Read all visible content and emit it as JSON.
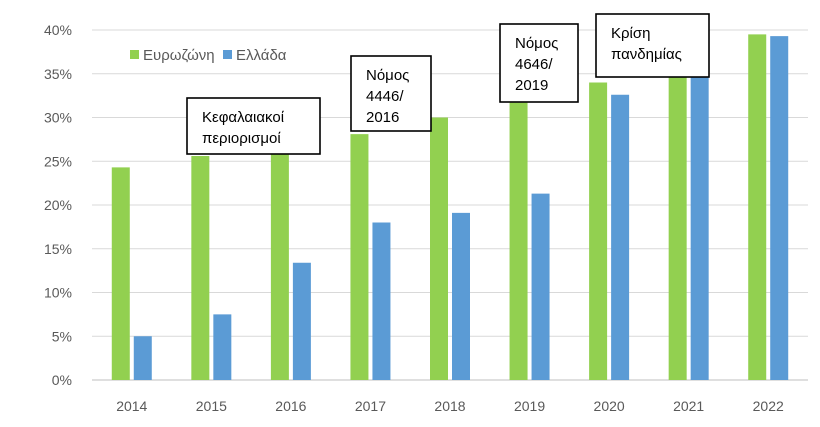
{
  "chart_data": {
    "type": "bar",
    "categories": [
      "2014",
      "2015",
      "2016",
      "2017",
      "2018",
      "2019",
      "2020",
      "2021",
      "2022"
    ],
    "series": [
      {
        "name": "Ευρωζώνη",
        "color": "#92d050",
        "values": [
          24.3,
          25.6,
          26.8,
          28.1,
          30.0,
          31.7,
          34.0,
          36.5,
          39.5
        ]
      },
      {
        "name": "Ελλάδα",
        "color": "#5b9bd5",
        "values": [
          5.0,
          7.5,
          13.4,
          18.0,
          19.1,
          21.3,
          32.6,
          37.2,
          39.3
        ]
      }
    ],
    "ylim": [
      0,
      40
    ],
    "yticks": [
      0,
      5,
      10,
      15,
      20,
      25,
      30,
      35,
      40
    ],
    "ytick_labels": [
      "0%",
      "5%",
      "10%",
      "15%",
      "20%",
      "25%",
      "30%",
      "35%",
      "40%"
    ],
    "grid": true,
    "legend_position": "top-left",
    "annotations": [
      {
        "lines": [
          "Κεφαλαιακοί",
          "περιορισμοί"
        ],
        "category": "2015"
      },
      {
        "lines": [
          "Νόμος",
          "4446/",
          "2016"
        ],
        "category": "2017"
      },
      {
        "lines": [
          "Νόμος",
          "4646/",
          "2019"
        ],
        "category": "2019"
      },
      {
        "lines": [
          "Κρίση",
          "πανδημίας"
        ],
        "category": "2021"
      }
    ]
  }
}
